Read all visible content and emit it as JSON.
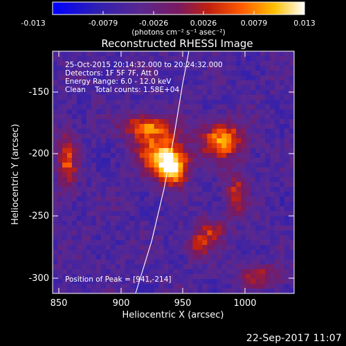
{
  "colorbar": {
    "ticks": [
      "-0.013",
      "-0.0079",
      "-0.0026",
      "0.0026",
      "0.0079",
      "0.013"
    ],
    "unit_label": "(photons cm⁻² s⁻¹ asec⁻²)"
  },
  "plot": {
    "title": "Reconstructed RHESSI Image",
    "xlabel": "Heliocentric X (arcsec)",
    "ylabel": "Heliocentric Y (arcsec)",
    "xticks": [
      "850",
      "900",
      "950",
      "1000"
    ],
    "yticks": [
      "-150",
      "-200",
      "-250",
      "-300"
    ],
    "info_lines": [
      "25-Oct-2015 20:14:32.000 to 20:24:32.000",
      "Detectors: 1F 5F 7F, Att 0",
      "Energy Range: 6.0 - 12.0 keV",
      "Clean    Total counts: 1.58E+04"
    ],
    "peak_text": "Position of Peak = [941,-214]",
    "colors": {
      "limb_line": "#ffffff",
      "axis": "#ffffff",
      "colormap": [
        "#0000ff",
        "#3b1a8c",
        "#5a2a8a",
        "#8a1a40",
        "#d42010",
        "#ff7a00",
        "#ffe000",
        "#ffffff"
      ]
    }
  },
  "timestamp": "22-Sep-2017 11:07",
  "chart_data": {
    "type": "heatmap",
    "title": "Reconstructed RHESSI Image",
    "xlabel": "Heliocentric X (arcsec)",
    "ylabel": "Heliocentric Y (arcsec)",
    "xlim": [
      845,
      1040
    ],
    "ylim": [
      -310,
      -125
    ],
    "color_range": [
      -0.013,
      0.013
    ],
    "peak": [
      941,
      -214
    ],
    "sources": [
      {
        "x": 941,
        "y": -214,
        "amp": 1.0,
        "sx": 9,
        "sy": 9
      },
      {
        "x": 930,
        "y": -200,
        "amp": 0.6,
        "sx": 14,
        "sy": 12
      },
      {
        "x": 982,
        "y": -193,
        "amp": 0.75,
        "sx": 12,
        "sy": 10
      },
      {
        "x": 920,
        "y": -182,
        "amp": 0.55,
        "sx": 14,
        "sy": 6
      },
      {
        "x": 857,
        "y": -210,
        "amp": 0.55,
        "sx": 5,
        "sy": 16
      },
      {
        "x": 993,
        "y": -235,
        "amp": 0.5,
        "sx": 6,
        "sy": 12
      },
      {
        "x": 1012,
        "y": -297,
        "amp": 0.4,
        "sx": 12,
        "sy": 6
      },
      {
        "x": 973,
        "y": -262,
        "amp": 0.4,
        "sx": 8,
        "sy": 8
      },
      {
        "x": 962,
        "y": -273,
        "amp": 0.35,
        "sx": 8,
        "sy": 7
      }
    ]
  }
}
